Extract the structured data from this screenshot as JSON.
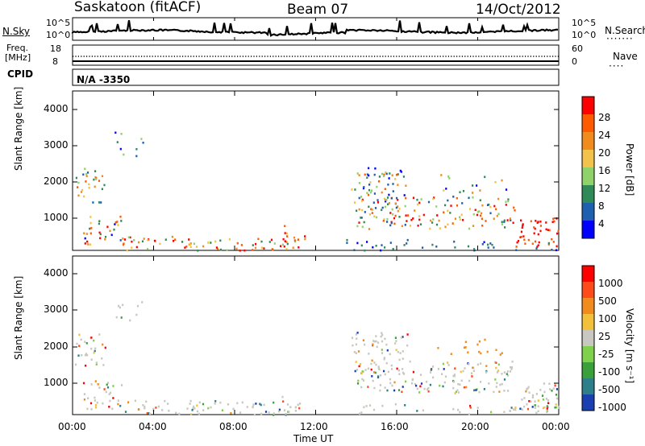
{
  "header": {
    "station": "Saskatoon (fitACF)",
    "beam": "Beam 07",
    "date": "14/Oct/2012"
  },
  "top_panels": {
    "nsky_label": "N.Sky",
    "nsky_top_tick": "10^5",
    "nsky_bottom_tick": "10^0",
    "nsearch_label": "N.Search",
    "nsearch_top_tick": "10^5",
    "nsearch_bottom_tick": "10^0",
    "freq_label_1": "Freq.",
    "freq_label_2": "[MHz]",
    "freq_top_tick": "18",
    "freq_bottom_tick": "8",
    "nave_label": "Nave",
    "nave_top_tick": "60",
    "nave_bottom_tick": "0",
    "cpid_label": "CPID",
    "cpid_value": "N/A -3350"
  },
  "chart_data": [
    {
      "type": "heatmap",
      "name": "power",
      "ylabel": "Slant Range [km]",
      "yticks": [
        "1000",
        "2000",
        "3000",
        "4000"
      ],
      "ylim": [
        180,
        4600
      ],
      "xlim": [
        0,
        24
      ],
      "colorbar_label": "Power [dB]",
      "colorbar_ticks": [
        "4",
        "8",
        "12",
        "16",
        "20",
        "24",
        "28"
      ],
      "colors": [
        "#0000ff",
        "#1f5fb0",
        "#2e8b57",
        "#8fd26a",
        "#f3c24a",
        "#f28b1d",
        "#ff5a00",
        "#ff0000"
      ]
    },
    {
      "type": "heatmap",
      "name": "velocity",
      "ylabel": "Slant Range [km]",
      "yticks": [
        "1000",
        "2000",
        "3000",
        "4000"
      ],
      "ylim": [
        180,
        4600
      ],
      "xlim": [
        0,
        24
      ],
      "xlabel": "Time UT",
      "xticks": [
        "00:00",
        "04:00",
        "08:00",
        "12:00",
        "16:00",
        "20:00",
        "00:00"
      ],
      "colorbar_label": "Velocity [m s⁻¹]",
      "colorbar_ticks": [
        "1000",
        "500",
        "100",
        "25",
        "-25",
        "-100",
        "-500",
        "-1000"
      ],
      "colors": [
        "#1a3fb0",
        "#2d7f8a",
        "#3aa03a",
        "#7fd04a",
        "#c8c8c0",
        "#f2c03a",
        "#f28b1d",
        "#ff4a1a",
        "#ff0000"
      ]
    }
  ]
}
